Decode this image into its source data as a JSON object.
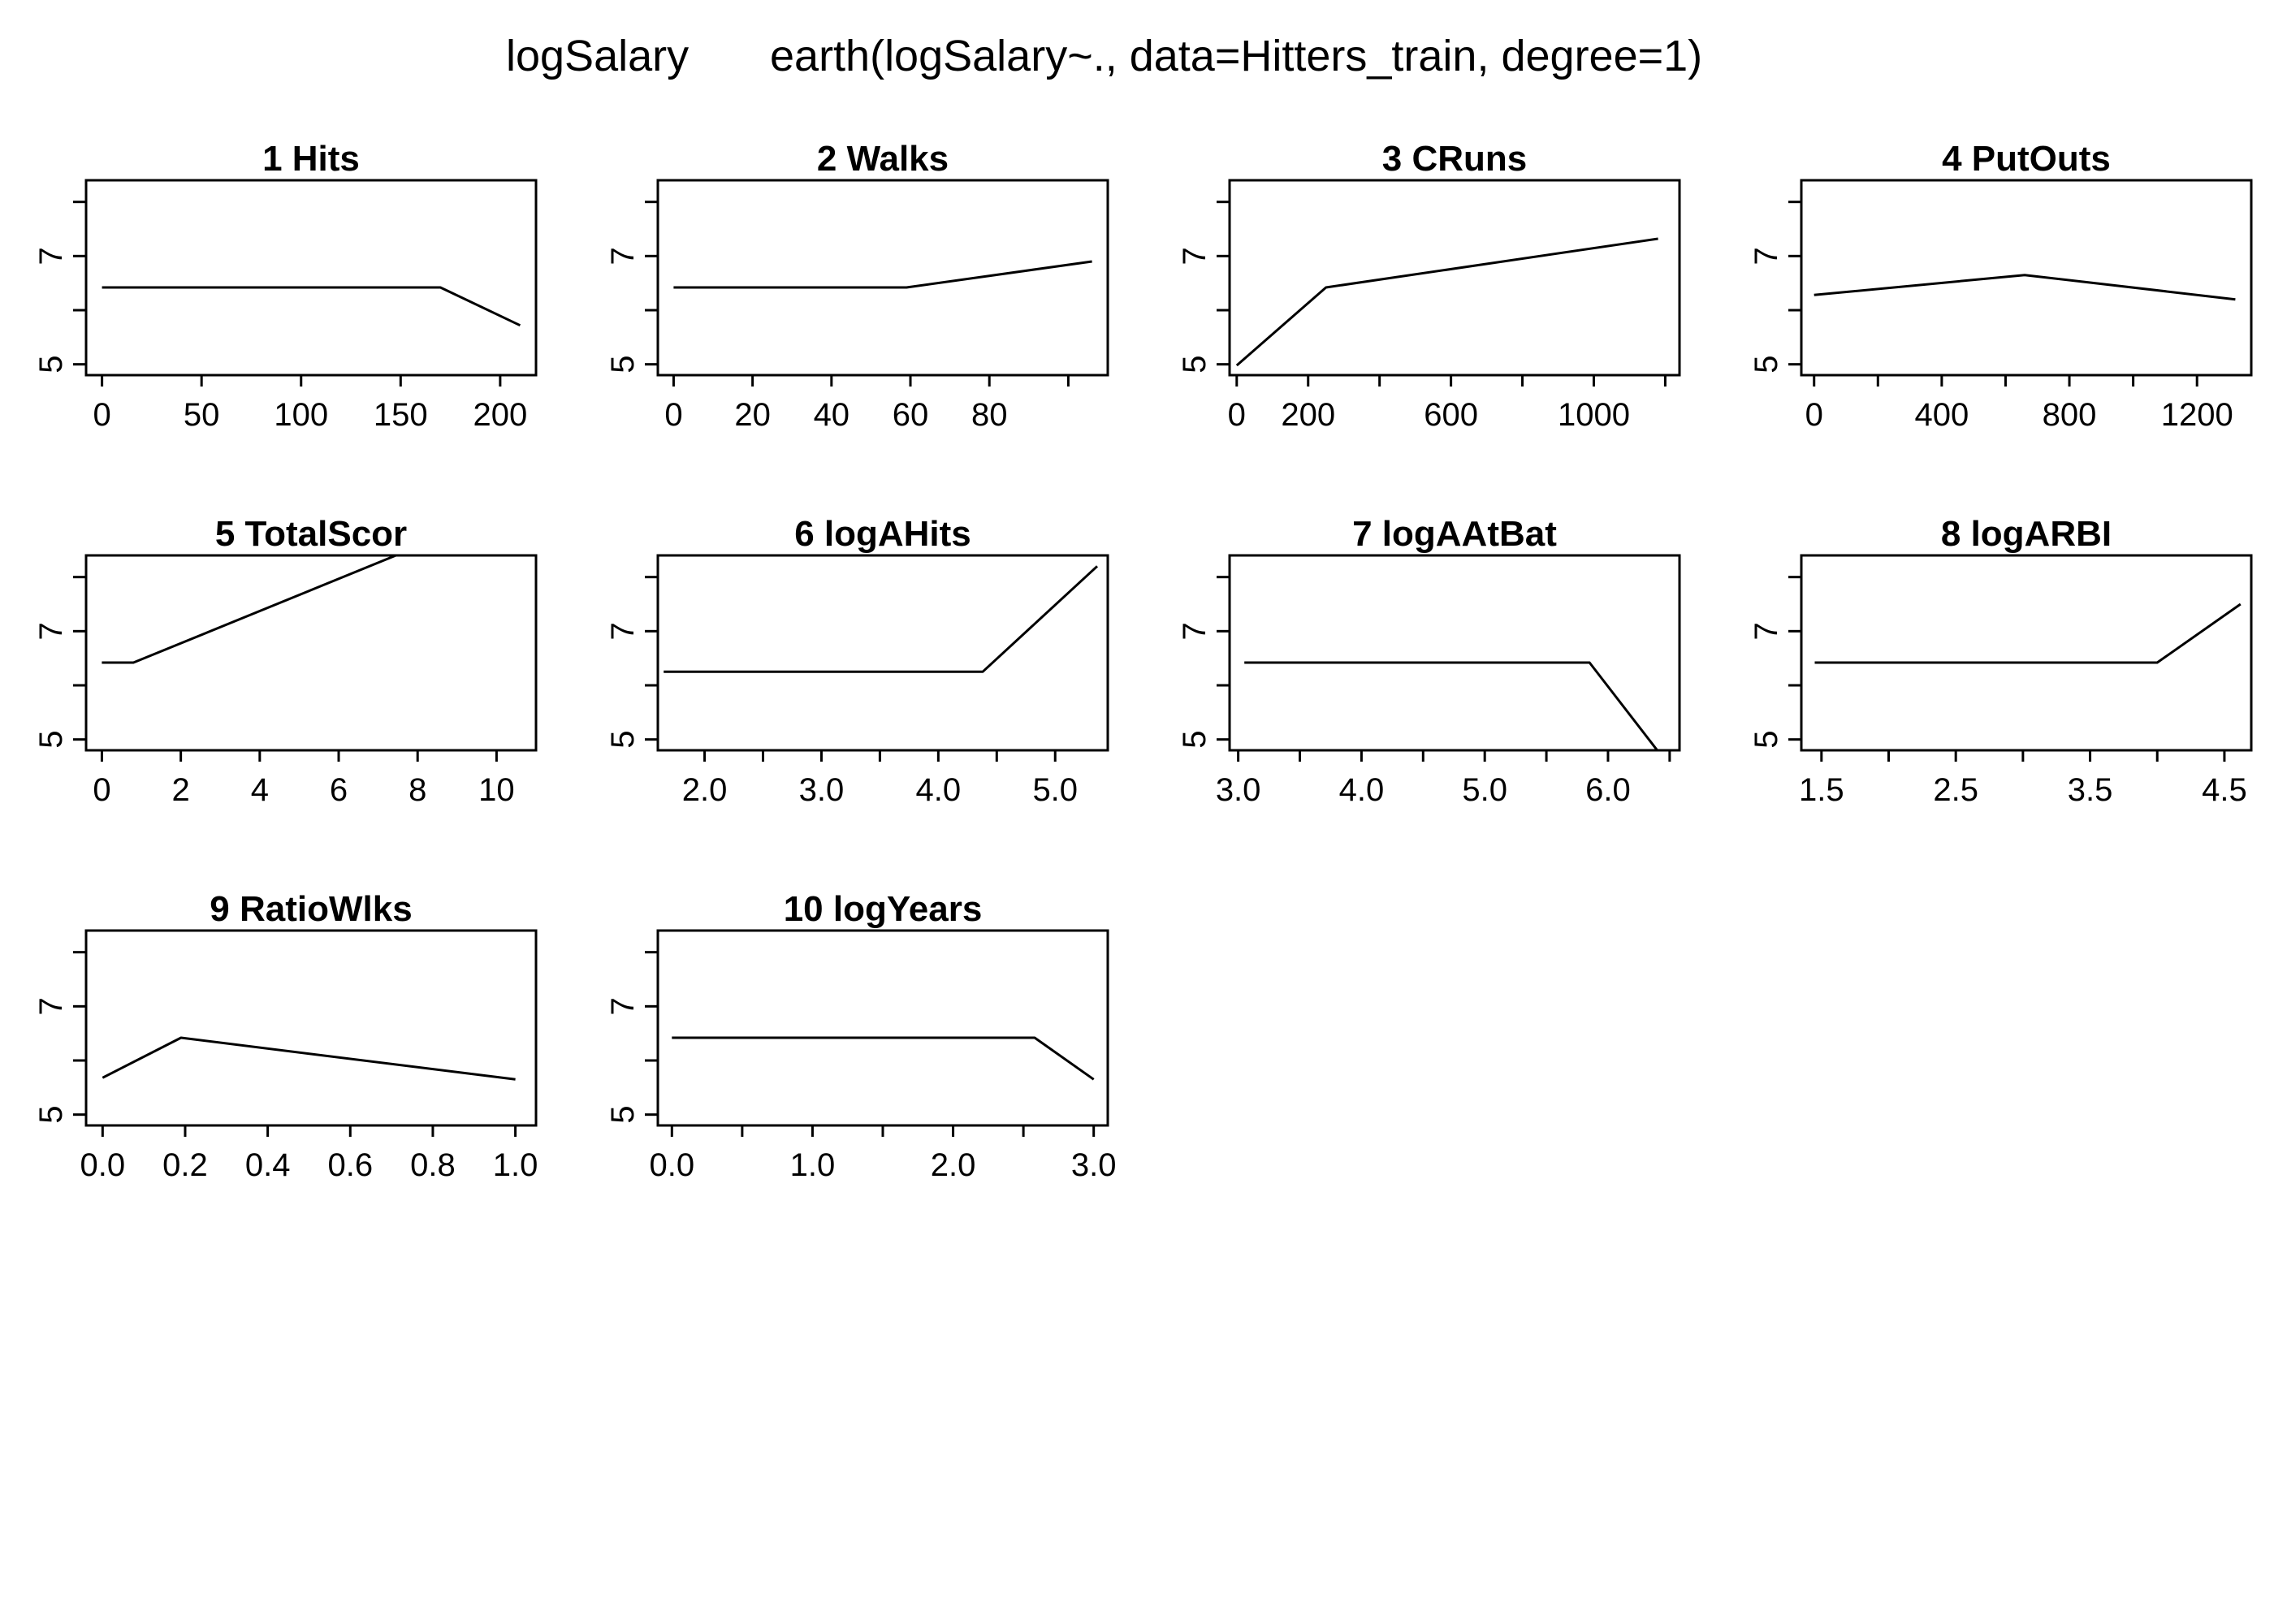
{
  "title": {
    "response": "logSalary",
    "model": "earth(logSalary~., data=Hitters_train, degree=1)"
  },
  "chart_data": [
    {
      "type": "line",
      "title": "1  Hits",
      "ylim": [
        4.8,
        8.4
      ],
      "yticks": [
        5,
        6,
        7,
        8
      ],
      "ytick_labels": [
        "5",
        "7"
      ],
      "xlim": [
        -8,
        218
      ],
      "xticks": [
        0,
        50,
        100,
        150,
        200
      ],
      "xtick_labels": [
        "0",
        "50",
        "100",
        "150",
        "200"
      ],
      "x": [
        0,
        170,
        210
      ],
      "y": [
        6.42,
        6.42,
        5.72
      ]
    },
    {
      "type": "line",
      "title": "2  Walks",
      "ylim": [
        4.8,
        8.4
      ],
      "yticks": [
        5,
        6,
        7,
        8
      ],
      "ytick_labels": [
        "5",
        "7"
      ],
      "xlim": [
        -4,
        110
      ],
      "xticks": [
        0,
        20,
        40,
        60,
        80,
        100
      ],
      "xtick_labels": [
        "0",
        "20",
        "40",
        "60",
        "80",
        ""
      ],
      "x": [
        0,
        59,
        106
      ],
      "y": [
        6.42,
        6.42,
        6.9
      ]
    },
    {
      "type": "line",
      "title": "3  CRuns",
      "ylim": [
        4.8,
        8.4
      ],
      "yticks": [
        5,
        6,
        7,
        8
      ],
      "ytick_labels": [
        "5",
        "7"
      ],
      "xlim": [
        -20,
        1240
      ],
      "xticks": [
        0,
        200,
        400,
        600,
        800,
        1000,
        1200
      ],
      "xtick_labels": [
        "0",
        "200",
        "",
        "600",
        "",
        "1000",
        ""
      ],
      "x": [
        0,
        250,
        1180
      ],
      "y": [
        4.98,
        6.42,
        7.32
      ]
    },
    {
      "type": "line",
      "title": "4  PutOuts",
      "ylim": [
        4.8,
        8.4
      ],
      "yticks": [
        5,
        6,
        7,
        8
      ],
      "ytick_labels": [
        "5",
        "7"
      ],
      "xlim": [
        -40,
        1370
      ],
      "xticks": [
        0,
        200,
        400,
        600,
        800,
        1000,
        1200
      ],
      "xtick_labels": [
        "0",
        "",
        "400",
        "",
        "800",
        "",
        "1200"
      ],
      "x": [
        0,
        660,
        1320
      ],
      "y": [
        6.28,
        6.65,
        6.2
      ]
    },
    {
      "type": "line",
      "title": "5  TotalScor",
      "ylim": [
        4.8,
        8.4
      ],
      "yticks": [
        5,
        6,
        7,
        8
      ],
      "ytick_labels": [
        "5",
        "7"
      ],
      "xlim": [
        -0.4,
        11.0
      ],
      "xticks": [
        0,
        2,
        4,
        6,
        8,
        10
      ],
      "xtick_labels": [
        "0",
        "2",
        "4",
        "6",
        "8",
        "10"
      ],
      "x": [
        0,
        0.8,
        7.45
      ],
      "y": [
        6.42,
        6.42,
        8.4
      ]
    },
    {
      "type": "line",
      "title": "6  logAHits",
      "ylim": [
        4.8,
        8.4
      ],
      "yticks": [
        5,
        6,
        7,
        8
      ],
      "ytick_labels": [
        "5",
        "7"
      ],
      "xlim": [
        1.6,
        5.45
      ],
      "xticks": [
        2.0,
        2.5,
        3.0,
        3.5,
        4.0,
        4.5,
        5.0
      ],
      "xtick_labels": [
        "2.0",
        "",
        "3.0",
        "",
        "4.0",
        "",
        "5.0"
      ],
      "x": [
        1.65,
        4.38,
        5.36
      ],
      "y": [
        6.25,
        6.25,
        8.2
      ]
    },
    {
      "type": "line",
      "title": "7  logAAtBat",
      "ylim": [
        4.8,
        8.4
      ],
      "yticks": [
        5,
        6,
        7,
        8
      ],
      "ytick_labels": [
        "5",
        "7"
      ],
      "xlim": [
        2.93,
        6.58
      ],
      "xticks": [
        3.0,
        3.5,
        4.0,
        4.5,
        5.0,
        5.5,
        6.0,
        6.5
      ],
      "xtick_labels": [
        "3.0",
        "",
        "4.0",
        "",
        "5.0",
        "",
        "6.0",
        ""
      ],
      "x": [
        3.05,
        5.85,
        6.45
      ],
      "y": [
        6.42,
        6.42,
        4.65
      ]
    },
    {
      "type": "line",
      "title": "8  logARBI",
      "ylim": [
        4.8,
        8.4
      ],
      "yticks": [
        5,
        6,
        7,
        8
      ],
      "ytick_labels": [
        "5",
        "7"
      ],
      "xlim": [
        1.35,
        4.7
      ],
      "xticks": [
        1.5,
        2.0,
        2.5,
        3.0,
        3.5,
        4.0,
        4.5
      ],
      "xtick_labels": [
        "1.5",
        "",
        "2.5",
        "",
        "3.5",
        "",
        "4.5"
      ],
      "x": [
        1.45,
        4.0,
        4.62
      ],
      "y": [
        6.42,
        6.42,
        7.5
      ]
    },
    {
      "type": "line",
      "title": "9  RatioWlks",
      "ylim": [
        4.8,
        8.4
      ],
      "yticks": [
        5,
        6,
        7,
        8
      ],
      "ytick_labels": [
        "5",
        "7"
      ],
      "xlim": [
        -0.04,
        1.05
      ],
      "xticks": [
        0,
        0.2,
        0.4,
        0.6,
        0.8,
        1.0
      ],
      "xtick_labels": [
        "0.0",
        "0.2",
        "0.4",
        "0.6",
        "0.8",
        "1.0"
      ],
      "x": [
        0,
        0.19,
        1.0
      ],
      "y": [
        5.68,
        6.42,
        5.65
      ]
    },
    {
      "type": "line",
      "title": "10  logYears",
      "ylim": [
        4.8,
        8.4
      ],
      "yticks": [
        5,
        6,
        7,
        8
      ],
      "ytick_labels": [
        "5",
        "7"
      ],
      "xlim": [
        -0.1,
        3.1
      ],
      "xticks": [
        0,
        0.5,
        1.0,
        1.5,
        2.0,
        2.5,
        3.0
      ],
      "xtick_labels": [
        "0.0",
        "",
        "1.0",
        "",
        "2.0",
        "",
        "3.0"
      ],
      "x": [
        0,
        2.58,
        3.0
      ],
      "y": [
        6.42,
        6.42,
        5.65
      ]
    }
  ]
}
